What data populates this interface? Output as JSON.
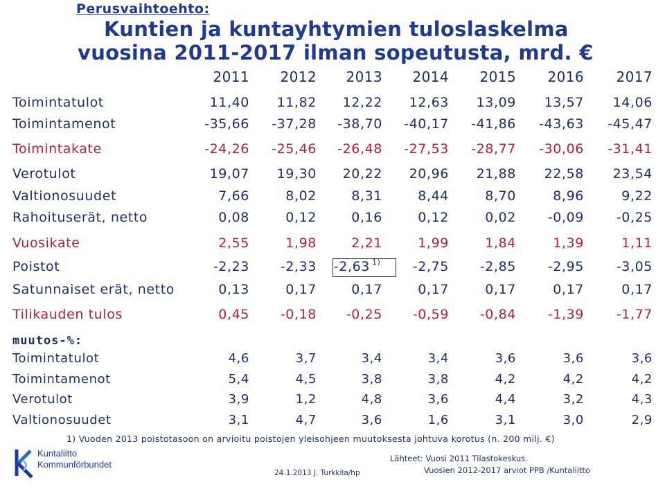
{
  "header": {
    "subtitle": "Perusvaihtoehto:",
    "title_line1": "Kuntien ja kuntayhtymien tuloslaskelma",
    "title_line2": "vuosina 2011-2017 ilman sopeutusta, mrd. €"
  },
  "years": [
    "2011",
    "2012",
    "2013",
    "2014",
    "2015",
    "2016",
    "2017"
  ],
  "rows": [
    {
      "label": "Toimintatulot",
      "values": [
        "11,40",
        "11,82",
        "12,22",
        "12,63",
        "13,09",
        "13,57",
        "14,06"
      ]
    },
    {
      "label": "Toimintamenot",
      "values": [
        "-35,66",
        "-37,28",
        "-38,70",
        "-40,17",
        "-41,86",
        "-43,63",
        "-45,47"
      ]
    },
    {
      "label": "Toimintakate",
      "values": [
        "-24,26",
        "-25,46",
        "-26,48",
        "-27,53",
        "-28,77",
        "-30,06",
        "-31,41"
      ]
    },
    {
      "label": "Verotulot",
      "values": [
        "19,07",
        "19,30",
        "20,22",
        "20,96",
        "21,88",
        "22,58",
        "23,54"
      ]
    },
    {
      "label": "Valtionosuudet",
      "values": [
        "7,66",
        "8,02",
        "8,31",
        "8,44",
        "8,70",
        "8,96",
        "9,22"
      ]
    },
    {
      "label": "Rahoituserät, netto",
      "values": [
        "0,08",
        "0,12",
        "0,16",
        "0,12",
        "0,02",
        "-0,09",
        "-0,25"
      ]
    },
    {
      "label": "Vuosikate",
      "values": [
        "2,55",
        "1,98",
        "2,21",
        "1,99",
        "1,84",
        "1,39",
        "1,11"
      ]
    },
    {
      "label": "Poistot",
      "values": [
        "-2,23",
        "-2,33",
        "-2,63",
        "-2,75",
        "-2,85",
        "-2,95",
        "-3,05"
      ],
      "note": "1)"
    },
    {
      "label": "Satunnaiset erät, netto",
      "values": [
        "0,13",
        "0,17",
        "0,17",
        "0,17",
        "0,17",
        "0,17",
        "0,17"
      ]
    },
    {
      "label": "Tilikauden tulos",
      "values": [
        "0,45",
        "-0,18",
        "-0,25",
        "-0,59",
        "-0,84",
        "-1,39",
        "-1,77"
      ]
    }
  ],
  "change_heading": "muutos-%:",
  "change_rows": [
    {
      "label": "Toimintatulot",
      "values": [
        "4,6",
        "3,7",
        "3,4",
        "3,4",
        "3,6",
        "3,6",
        "3,6"
      ]
    },
    {
      "label": "Toimintamenot",
      "values": [
        "5,4",
        "4,5",
        "3,8",
        "3,8",
        "4,2",
        "4,2",
        "4,2"
      ]
    },
    {
      "label": "Verotulot",
      "values": [
        "3,9",
        "1,2",
        "4,8",
        "3,6",
        "4,4",
        "3,2",
        "4,3"
      ]
    },
    {
      "label": "Valtionosuudet",
      "values": [
        "3,1",
        "4,7",
        "3,6",
        "1,6",
        "3,1",
        "3,0",
        "2,9"
      ]
    }
  ],
  "footnote": "1) Vuoden 2013 poistotasoon on arvioitu poistojen yleisohjeen muutoksesta johtuva korotus (n. 200 milj. €)",
  "sources": {
    "line1": "Lähteet: Vuosi 2011 Tilastokeskus.",
    "line2": "Vuosien 2012-2017 arviot PPB /Kuntaliitto"
  },
  "date_author": "24.1.2013 J. Turkkila/hp",
  "logo": {
    "name_fi": "Kuntaliitto",
    "name_sv": "Kommunförbundet",
    "color": "#1f3b8f"
  },
  "colors": {
    "title": "#1f3b8f",
    "text": "#1f2f66",
    "highlight_rows": "#b0213a"
  }
}
